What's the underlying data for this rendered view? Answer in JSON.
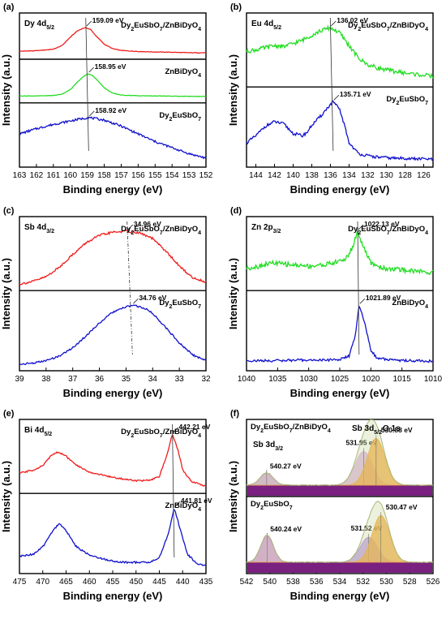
{
  "chart_data": [
    {
      "panel": "(a)",
      "type": "line",
      "core_level": "Dy 4d5/2",
      "xlabel": "Binding energy (eV)",
      "ylabel": "Intensity (a.u.)",
      "xlim": [
        163,
        152
      ],
      "xticks": [
        163,
        162,
        161,
        160,
        159,
        158,
        157,
        156,
        155,
        154,
        153,
        152
      ],
      "series": [
        {
          "name": "Dy2EuSbO7/ZnBiDyO4",
          "color": "#ee1c1c",
          "peak_eV": 159.09,
          "peak_label": "159.09 eV",
          "x": [
            163,
            162,
            161,
            160.5,
            160,
            159.6,
            159.3,
            159.09,
            158.8,
            158.5,
            158.0,
            157.5,
            157,
            156,
            155,
            154,
            153,
            152
          ],
          "y": [
            0.06,
            0.08,
            0.14,
            0.28,
            0.62,
            0.86,
            0.96,
            1.0,
            0.92,
            0.68,
            0.34,
            0.16,
            0.09,
            0.05,
            0.03,
            0.02,
            0.0,
            0.0
          ]
        },
        {
          "name": "ZnBiDyO4",
          "color": "#22dd22",
          "peak_eV": 158.95,
          "peak_label": "158.95 eV",
          "x": [
            163,
            162,
            161,
            160.5,
            160,
            159.6,
            159.2,
            158.95,
            158.7,
            158.3,
            158.0,
            157.5,
            157,
            156,
            155,
            154,
            153,
            152
          ],
          "y": [
            0.02,
            0.02,
            0.04,
            0.1,
            0.3,
            0.62,
            0.9,
            1.0,
            0.93,
            0.64,
            0.38,
            0.14,
            0.06,
            0.03,
            0.02,
            0.01,
            0.0,
            0.0
          ]
        },
        {
          "name": "Dy2EuSbO7",
          "color": "#1111cc",
          "peak_eV": 158.92,
          "peak_label": "158.92 eV",
          "x": [
            163,
            162,
            161,
            160,
            159.5,
            158.92,
            158,
            157,
            156,
            155,
            154,
            153,
            152
          ],
          "y": [
            0.62,
            0.74,
            0.84,
            0.92,
            0.96,
            1.0,
            0.94,
            0.8,
            0.62,
            0.44,
            0.3,
            0.16,
            0.06
          ]
        }
      ]
    },
    {
      "panel": "(b)",
      "type": "line",
      "core_level": "Eu 4d5/2",
      "xlabel": "Binding energy (eV)",
      "ylabel": "Intensity (a.u.)",
      "xlim": [
        145,
        125
      ],
      "xticks": [
        144,
        142,
        140,
        138,
        136,
        134,
        132,
        130,
        128,
        126
      ],
      "series": [
        {
          "name": "Dy2EuSbO7/ZnBiDyO4",
          "color": "#22dd22",
          "peak_eV": 136.02,
          "peak_label": "136.02 eV",
          "x": [
            145,
            144,
            143,
            142,
            141,
            140,
            139,
            138,
            137,
            136.02,
            135,
            134,
            133,
            132,
            131,
            130,
            129,
            128,
            127,
            126,
            125
          ],
          "y": [
            0.55,
            0.58,
            0.62,
            0.66,
            0.64,
            0.7,
            0.76,
            0.86,
            0.94,
            1.0,
            0.9,
            0.66,
            0.42,
            0.3,
            0.24,
            0.2,
            0.17,
            0.14,
            0.12,
            0.1,
            0.08
          ]
        },
        {
          "name": "Dy2EuSbO7",
          "color": "#1111cc",
          "peak_eV": 135.71,
          "peak_label": "135.71 eV",
          "x": [
            145,
            144,
            143,
            142,
            141,
            140,
            139,
            138.5,
            138,
            137,
            136.5,
            135.71,
            135,
            134.5,
            134,
            133,
            132,
            131,
            130,
            129,
            128,
            127,
            126,
            125
          ],
          "y": [
            0.3,
            0.42,
            0.58,
            0.66,
            0.62,
            0.46,
            0.42,
            0.48,
            0.6,
            0.76,
            0.86,
            1.0,
            0.86,
            0.6,
            0.3,
            0.12,
            0.08,
            0.06,
            0.05,
            0.04,
            0.04,
            0.03,
            0.03,
            0.02
          ]
        }
      ]
    },
    {
      "panel": "(c)",
      "type": "line",
      "core_level": "Sb 4d3/2",
      "xlabel": "Binding energy (eV)",
      "ylabel": "Intensity (a.u.)",
      "xlim": [
        39,
        32
      ],
      "xticks": [
        39,
        38,
        37,
        36,
        35,
        34,
        33,
        32
      ],
      "series": [
        {
          "name": "Dy2EuSbO7/ZnBiDyO4",
          "color": "#ee1c1c",
          "peak_eV": 34.96,
          "peak_label": "34.96 eV",
          "x": [
            39,
            38.5,
            38,
            37.5,
            37,
            36.5,
            36,
            35.5,
            34.96,
            34.5,
            34,
            33.5,
            33,
            32.5,
            32
          ],
          "y": [
            0.0,
            0.05,
            0.14,
            0.32,
            0.56,
            0.78,
            0.92,
            0.98,
            1.0,
            0.97,
            0.86,
            0.62,
            0.34,
            0.12,
            0.04
          ]
        },
        {
          "name": "Dy2EuSbO7",
          "color": "#1111cc",
          "peak_eV": 34.76,
          "peak_label": "34.76 eV",
          "x": [
            39,
            38.5,
            38,
            37.5,
            37,
            36.5,
            36,
            35.5,
            35,
            34.76,
            34.3,
            34,
            33.5,
            33,
            32.5,
            32
          ],
          "y": [
            0.0,
            0.02,
            0.06,
            0.14,
            0.28,
            0.48,
            0.7,
            0.88,
            0.97,
            1.0,
            0.95,
            0.86,
            0.62,
            0.36,
            0.16,
            0.06
          ]
        }
      ]
    },
    {
      "panel": "(d)",
      "type": "line",
      "core_level": "Zn 2p3/2",
      "xlabel": "Binding energy (eV)",
      "ylabel": "Intensity (a.u.)",
      "xlim": [
        1040,
        1010
      ],
      "xticks": [
        1040,
        1035,
        1030,
        1025,
        1020,
        1015,
        1010
      ],
      "series": [
        {
          "name": "Dy2EuSbO7/ZnBiDyO4",
          "color": "#22dd22",
          "peak_eV": 1022.13,
          "peak_label": "1022.13 eV",
          "x": [
            1040,
            1038,
            1036,
            1034,
            1032,
            1030,
            1028,
            1026,
            1024,
            1023,
            1022.13,
            1021,
            1020,
            1018,
            1016,
            1014,
            1012,
            1010
          ],
          "y": [
            0.3,
            0.34,
            0.4,
            0.38,
            0.36,
            0.34,
            0.36,
            0.4,
            0.48,
            0.68,
            1.0,
            0.64,
            0.4,
            0.3,
            0.28,
            0.26,
            0.24,
            0.22
          ]
        },
        {
          "name": "ZnBiDyO4",
          "color": "#1111cc",
          "peak_eV": 1021.89,
          "peak_label": "1021.89 eV",
          "x": [
            1040,
            1036,
            1032,
            1028,
            1025,
            1023.5,
            1022.5,
            1021.89,
            1021,
            1020,
            1019,
            1016,
            1013,
            1010
          ],
          "y": [
            0.06,
            0.06,
            0.07,
            0.07,
            0.08,
            0.14,
            0.48,
            1.0,
            0.7,
            0.24,
            0.1,
            0.07,
            0.06,
            0.05
          ]
        }
      ]
    },
    {
      "panel": "(e)",
      "type": "line",
      "core_level": "Bi 4d5/2",
      "xlabel": "Binding energy (eV)",
      "ylabel": "Intensity (a.u.)",
      "xlim": [
        475,
        435
      ],
      "xticks": [
        475,
        470,
        465,
        460,
        455,
        450,
        445,
        440,
        435
      ],
      "series": [
        {
          "name": "Dy2EuSbO7/ZnBiDyO4",
          "color": "#ee1c1c",
          "peak_eV": 442.21,
          "peak_label": "442.21 eV",
          "x": [
            475,
            472,
            470,
            468,
            466.5,
            465,
            463,
            460,
            457,
            455,
            452,
            450,
            447,
            445,
            443.5,
            442.21,
            441,
            440,
            438,
            436,
            435
          ],
          "y": [
            0.26,
            0.32,
            0.4,
            0.62,
            0.66,
            0.58,
            0.42,
            0.28,
            0.22,
            0.18,
            0.14,
            0.12,
            0.12,
            0.2,
            0.56,
            1.0,
            0.7,
            0.32,
            0.1,
            0.04,
            0.02
          ]
        },
        {
          "name": "ZnBiDyO4",
          "color": "#1111cc",
          "peak_eV": 441.81,
          "peak_label": "441.81 eV",
          "x": [
            475,
            472,
            470,
            468,
            466.5,
            465,
            463,
            460,
            457,
            455,
            452,
            450,
            447,
            445,
            443,
            441.81,
            440.5,
            439,
            437,
            435
          ],
          "y": [
            0.18,
            0.22,
            0.34,
            0.6,
            0.74,
            0.62,
            0.36,
            0.2,
            0.14,
            0.1,
            0.08,
            0.08,
            0.08,
            0.16,
            0.58,
            1.0,
            0.64,
            0.22,
            0.06,
            0.02
          ]
        }
      ]
    },
    {
      "panel": "(f)",
      "type": "area",
      "core_level_labels": [
        "Sb 3d3/2",
        "Sb 3d5/2",
        "O 1s"
      ],
      "xlabel": "Binding energy (eV)",
      "ylabel": "Intensity (a.u.)",
      "xlim": [
        542,
        526
      ],
      "xticks": [
        542,
        540,
        538,
        536,
        534,
        532,
        530,
        528,
        526
      ],
      "series": [
        {
          "name": "Dy2EuSbO7/ZnBiDyO4",
          "components": [
            {
              "label": "540.27 eV",
              "center_eV": 540.27,
              "height": 0.22,
              "color": "#c98fd0"
            },
            {
              "label": "531.95 eV",
              "center_eV": 531.95,
              "height": 0.62,
              "color": "#d8a8d8"
            },
            {
              "label": "530.88 eV",
              "center_eV": 530.88,
              "height": 0.86,
              "color": "#f5a12a"
            }
          ]
        },
        {
          "name": "Dy2EuSbO7",
          "components": [
            {
              "label": "540.24 eV",
              "center_eV": 540.24,
              "height": 0.48,
              "color": "#c97ccf"
            },
            {
              "label": "531.52 eV",
              "center_eV": 531.52,
              "height": 0.46,
              "color": "#b48ae0"
            },
            {
              "label": "530.47 eV",
              "center_eV": 530.47,
              "height": 0.86,
              "color": "#f5a12a"
            }
          ]
        }
      ]
    }
  ]
}
